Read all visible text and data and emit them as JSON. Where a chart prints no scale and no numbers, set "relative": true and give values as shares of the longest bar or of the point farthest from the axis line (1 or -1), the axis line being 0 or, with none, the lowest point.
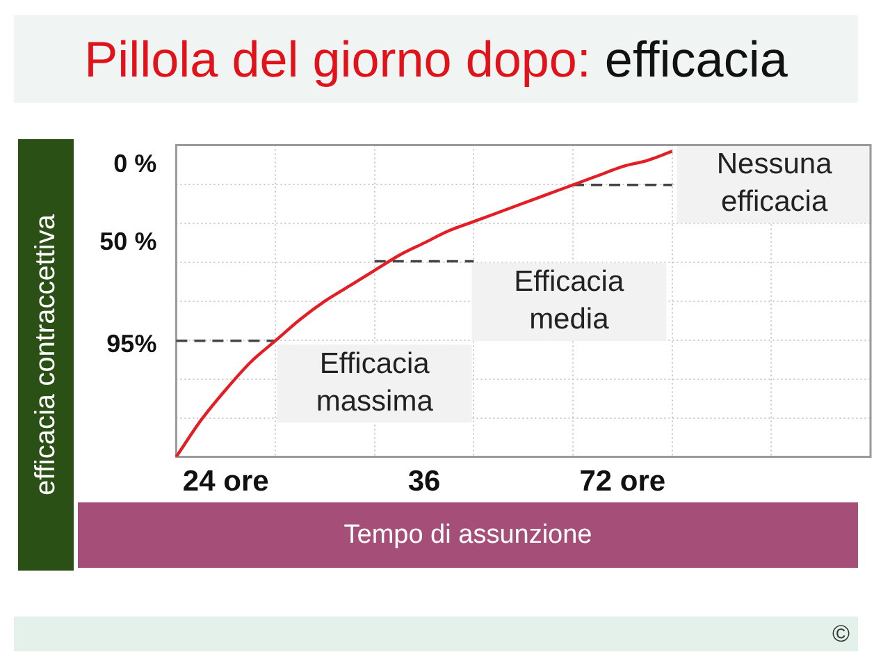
{
  "chart_data": {
    "type": "line",
    "title": "Pillola del giorno dopo: efficacia",
    "xlabel": "Tempo di assunzione",
    "ylabel": "efficacia contraccettiva",
    "relative": true,
    "categories": [
      null,
      null,
      "24 ore",
      null,
      null,
      null,
      null,
      null,
      null,
      null,
      "36",
      null,
      null,
      null,
      null,
      null,
      null,
      null,
      "72 ore",
      null,
      null,
      null,
      null,
      null,
      null,
      null,
      null,
      null,
      null
    ],
    "grid": true,
    "marker": "none",
    "series": [
      {
        "color": "#e31e24",
        "values": [
          0,
          0.12,
          0.22,
          0.31,
          0.38,
          0.45,
          0.51,
          0.56,
          0.61,
          0.66,
          0.7,
          0.74,
          0.77,
          0.8,
          0.83,
          0.86,
          0.89,
          0.92,
          0.95,
          0.97,
          1,
          null,
          null,
          null,
          null,
          null,
          null,
          null,
          null
        ]
      },
      {
        "color": "#444444",
        "line_style": "dashed",
        "values": [
          0.38,
          0.38,
          0.38,
          0.38,
          0.38,
          null,
          null,
          null,
          0.64,
          0.64,
          0.64,
          0.64,
          0.64,
          null,
          null,
          null,
          0.89,
          0.89,
          0.89,
          0.89,
          0.89,
          null,
          null,
          null,
          null,
          null,
          null,
          null,
          null
        ]
      }
    ],
    "annotations": [
      "0 %",
      "50 %",
      "95%",
      "Efficacia massima",
      "Efficacia media",
      "Nessuna efficacia",
      "©"
    ]
  }
}
